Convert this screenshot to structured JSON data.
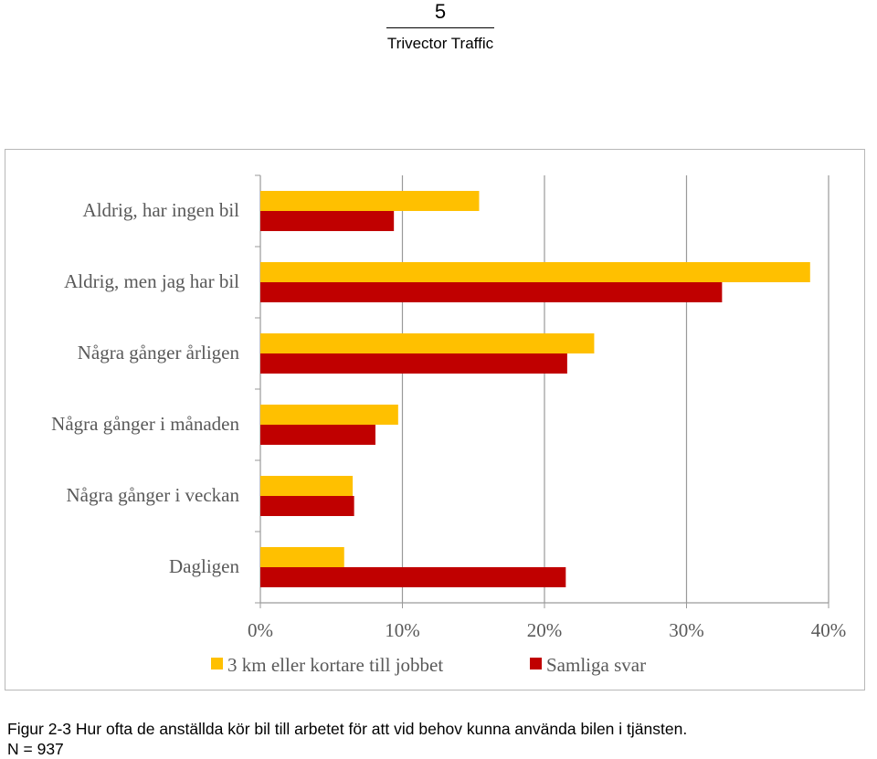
{
  "header": {
    "page_number": "5",
    "company": "Trivector Traffic"
  },
  "caption": {
    "line1": "Figur 2-3 Hur ofta de anställda kör bil till arbetet för att vid behov kunna använda bilen i tjänsten.",
    "line2": "N = 937"
  },
  "chart_data": {
    "type": "bar",
    "orientation": "horizontal",
    "categories": [
      "Aldrig, har ingen bil",
      "Aldrig, men jag har bil",
      "Några gånger årligen",
      "Några gånger i månaden",
      "Några gånger i veckan",
      "Dagligen"
    ],
    "series": [
      {
        "name": "3 km eller kortare till jobbet",
        "color": "#FFC000",
        "values": [
          15.4,
          38.7,
          23.5,
          9.7,
          6.5,
          5.9
        ]
      },
      {
        "name": "Samliga svar",
        "color": "#C00000",
        "values": [
          9.4,
          32.5,
          21.6,
          8.1,
          6.6,
          21.5
        ]
      }
    ],
    "xlim": [
      0,
      40
    ],
    "xticks": [
      "0%",
      "10%",
      "20%",
      "30%",
      "40%"
    ],
    "grid": true,
    "legend_position": "bottom"
  }
}
